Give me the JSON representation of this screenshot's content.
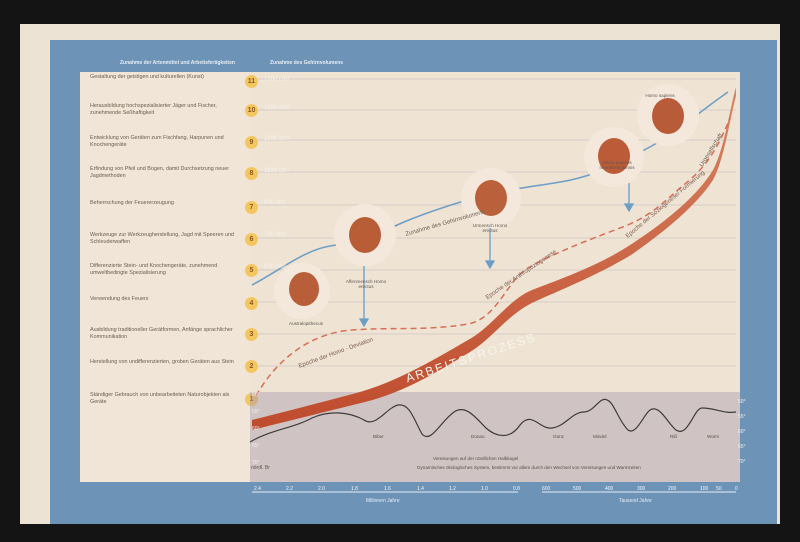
{
  "header": {
    "left": "Zunahme der Artenmittel und Arbeitsfertigkeiten",
    "right": "Zunahme des Gehirnvolumens"
  },
  "rows": [
    {
      "num": "11",
      "text": "Gestaltung der geistigen und kulturellen (Kunst)"
    },
    {
      "num": "10",
      "text": "Herausbildung hochspezialisierter Jäger und Fischer, zunehmende Seßhaftigkeit"
    },
    {
      "num": "9",
      "text": "Entwicklung von Geräten zum Fischfang, Harpunen und Knochengeräte"
    },
    {
      "num": "8",
      "text": "Erfindung von Pfeil und Bogen, damit Durchsetzung neuer Jagdmethoden"
    },
    {
      "num": "7",
      "text": "Beherrschung der Feuererzeugung"
    },
    {
      "num": "6",
      "text": "Werkzeuge zur Werkzeugherstellung, Jagd mit Speeren und Schleuderwaffen"
    },
    {
      "num": "5",
      "text": "Differenzierte Stein- und Knochengeräte, zunehmend umweltbedingte Spezialisierung"
    },
    {
      "num": "4",
      "text": "Verwendung des Feuers"
    },
    {
      "num": "3",
      "text": "Ausbildung traditioneller Gerätformen, Anfänge sprachlicher Kommunikation"
    },
    {
      "num": "2",
      "text": "Herstellung von undifferenzierten, groben Geräten aus Stein"
    },
    {
      "num": "1",
      "text": "Ständiger Gebrauch von unbearbeiteten Naturobjekten als Geräte"
    }
  ],
  "brain_volume": [
    "1700",
    "1500",
    "1300",
    "1100",
    "900",
    "700",
    "500"
  ],
  "brain_unit": "cm³",
  "labels": {
    "main_process": "ARBEITSPROZESS",
    "epoch_deviation": "Epoche der Homo - Deviation",
    "epoch_anthropo": "Epoche der Anthropoziogenese",
    "epoch_sociogenese": "Epoche der Soziogenese/ Formierung",
    "increase_brain": "Zunahme des Gehirnvolumens",
    "ur_gesellschaft": "Urgesellschaft",
    "glacial_title": "Vereisungen auf der nördlichen Halbkugel",
    "glacial_subtitle": "Dynamisches ökologisches System, bestimmt vor allem durch den Wechsel von Vereisungen und Warmzeiten"
  },
  "glaciations": [
    "Biber",
    "Donau",
    "Günz",
    "Mindel",
    "Riß",
    "Würm"
  ],
  "portraits": [
    {
      "name": "Australopithecus"
    },
    {
      "name": "Affenmensch Homo erectus"
    },
    {
      "name": "Urmensch Homo erectus"
    },
    {
      "name": "Homo sapiens neanderthalensis"
    },
    {
      "name": "Homo sapiens"
    }
  ],
  "latitudes": [
    "50°",
    "55°",
    "60°",
    "65°",
    "70°"
  ],
  "latitude_right": [
    "50°",
    "55°",
    "60°",
    "65°",
    "70°"
  ],
  "latitude_unit": "nördl. Br",
  "x_axis_left": {
    "ticks": [
      "2.4",
      "2.2",
      "2.0",
      "1.8",
      "1.6",
      "1.4",
      "1.2",
      "1.0",
      "0.8"
    ],
    "label": "Millionen Jahre"
  },
  "x_axis_right": {
    "ticks": [
      "600",
      "500",
      "400",
      "300",
      "200",
      "100",
      "50",
      "0"
    ],
    "label": "Tausend Jahre"
  }
}
